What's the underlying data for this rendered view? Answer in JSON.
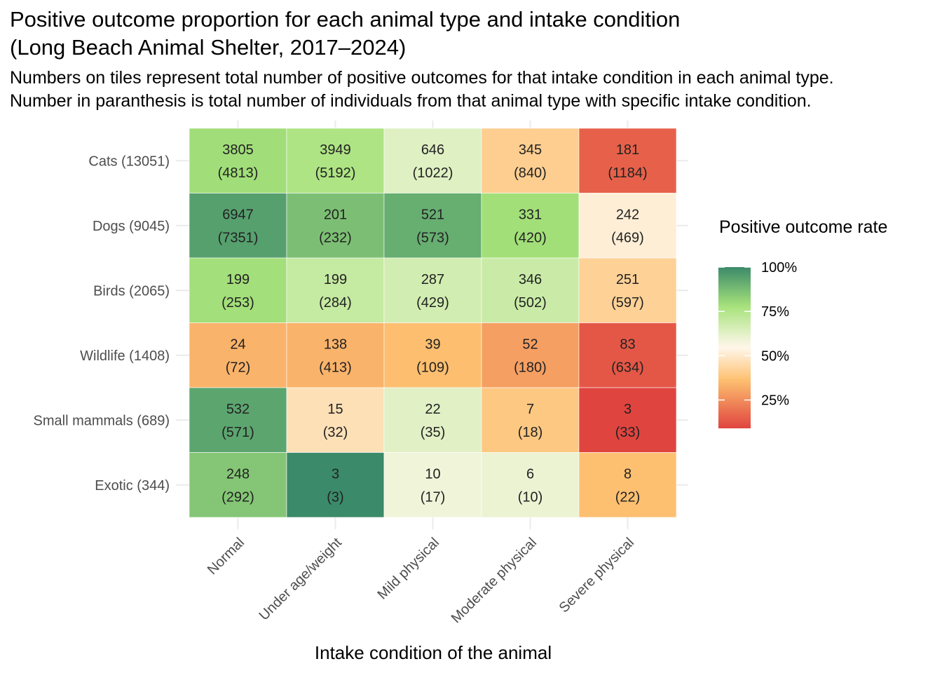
{
  "chart_data": {
    "type": "heatmap",
    "title": [
      "Positive outcome proportion for each animal type and intake condition",
      "(Long Beach Animal Shelter, 2017–2024)"
    ],
    "subtitle": [
      "Numbers on tiles represent total number of positive outcomes for that intake condition in each animal type.",
      "Number in paranthesis is total number of individuals from that animal type with specific intake condition."
    ],
    "xlabel": "Intake condition of the animal",
    "ylabel": "",
    "x_categories": [
      "Normal",
      "Under age/weight",
      "Mild physical",
      "Moderate physical",
      "Severe physical"
    ],
    "y_categories": [
      "Cats (13051)",
      "Dogs (9045)",
      "Birds (2065)",
      "Wildlife (1408)",
      "Small mammals (689)",
      "Exotic (344)"
    ],
    "positive": [
      [
        3805,
        3949,
        646,
        345,
        181
      ],
      [
        6947,
        201,
        521,
        331,
        242
      ],
      [
        199,
        199,
        287,
        346,
        251
      ],
      [
        24,
        138,
        39,
        52,
        83
      ],
      [
        532,
        15,
        22,
        7,
        3
      ],
      [
        248,
        3,
        10,
        6,
        8
      ]
    ],
    "total": [
      [
        4813,
        5192,
        1022,
        840,
        1184
      ],
      [
        7351,
        232,
        573,
        420,
        469
      ],
      [
        253,
        284,
        429,
        502,
        597
      ],
      [
        72,
        413,
        109,
        180,
        634
      ],
      [
        571,
        32,
        35,
        18,
        33
      ],
      [
        292,
        3,
        17,
        10,
        22
      ]
    ],
    "legend": {
      "title": "Positive outcome rate",
      "ticks": [
        "100%",
        "75%",
        "50%",
        "25%"
      ],
      "tick_values": [
        1.0,
        0.75,
        0.5,
        0.25
      ],
      "placement": "right",
      "range": [
        0.09,
        1.0
      ]
    },
    "colors": {
      "low": "#e0443f",
      "mid_low": "#fdbf6f",
      "mid": "#fff8ec",
      "mid_high": "#a6e27a",
      "high": "#3b8a6a"
    },
    "grid": true
  }
}
